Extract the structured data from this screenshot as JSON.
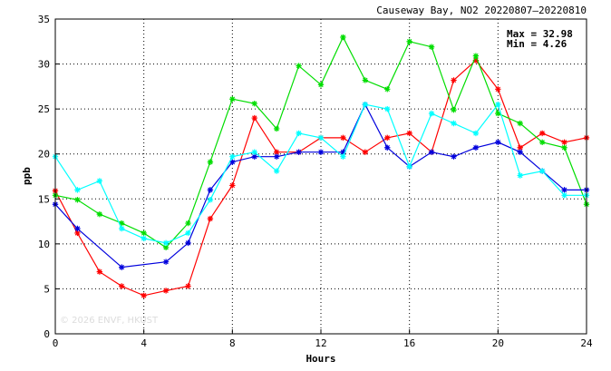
{
  "chart_data": {
    "type": "line",
    "title": "Causeway Bay, NO2 20220807–20220810",
    "xlabel": "Hours",
    "ylabel": "ppb",
    "xlim": [
      0,
      24
    ],
    "ylim": [
      0,
      35
    ],
    "xticks": [
      0,
      4,
      8,
      12,
      16,
      20,
      24
    ],
    "yticks": [
      0,
      5,
      10,
      15,
      20,
      25,
      30,
      35
    ],
    "grid": true,
    "stats": {
      "max": "Max = 32.98",
      "min": "Min =  4.26"
    },
    "watermark": "© 2026 ENVF, HKUST",
    "x": [
      0,
      1,
      2,
      3,
      4,
      5,
      6,
      7,
      8,
      9,
      10,
      11,
      12,
      13,
      14,
      15,
      16,
      17,
      18,
      19,
      20,
      21,
      22,
      23,
      24
    ],
    "series": [
      {
        "color": "#ff0000",
        "marker": "star",
        "values": [
          15.9,
          11.2,
          6.9,
          5.3,
          4.26,
          4.8,
          5.3,
          12.8,
          16.5,
          24.0,
          20.2,
          20.2,
          21.8,
          21.8,
          20.2,
          21.8,
          22.3,
          20.2,
          28.2,
          30.4,
          27.2,
          20.7,
          22.3,
          21.3,
          21.8
        ]
      },
      {
        "color": "#00dd00",
        "marker": "star",
        "values": [
          15.4,
          14.9,
          13.3,
          12.3,
          11.2,
          9.6,
          12.3,
          19.1,
          26.1,
          25.6,
          22.8,
          29.8,
          27.7,
          32.98,
          28.2,
          27.2,
          32.5,
          31.9,
          24.9,
          30.9,
          24.5,
          23.4,
          21.3,
          20.7,
          14.4
        ]
      },
      {
        "color": "#0000dd",
        "marker": "star",
        "values": [
          14.4,
          11.7,
          null,
          7.4,
          null,
          8.0,
          10.1,
          16.0,
          19.1,
          19.7,
          19.7,
          20.2,
          20.2,
          20.2,
          25.5,
          20.7,
          18.6,
          20.2,
          19.7,
          20.7,
          21.3,
          20.2,
          18.1,
          16.0,
          16.0
        ]
      },
      {
        "color": "#00ffff",
        "marker": "star",
        "values": [
          19.7,
          16.0,
          17.0,
          11.7,
          10.6,
          10.1,
          11.2,
          14.9,
          19.7,
          20.2,
          18.1,
          22.3,
          21.8,
          19.7,
          25.5,
          25.0,
          18.6,
          24.5,
          23.4,
          22.3,
          25.5,
          17.6,
          18.1,
          15.4,
          15.4
        ]
      }
    ]
  }
}
